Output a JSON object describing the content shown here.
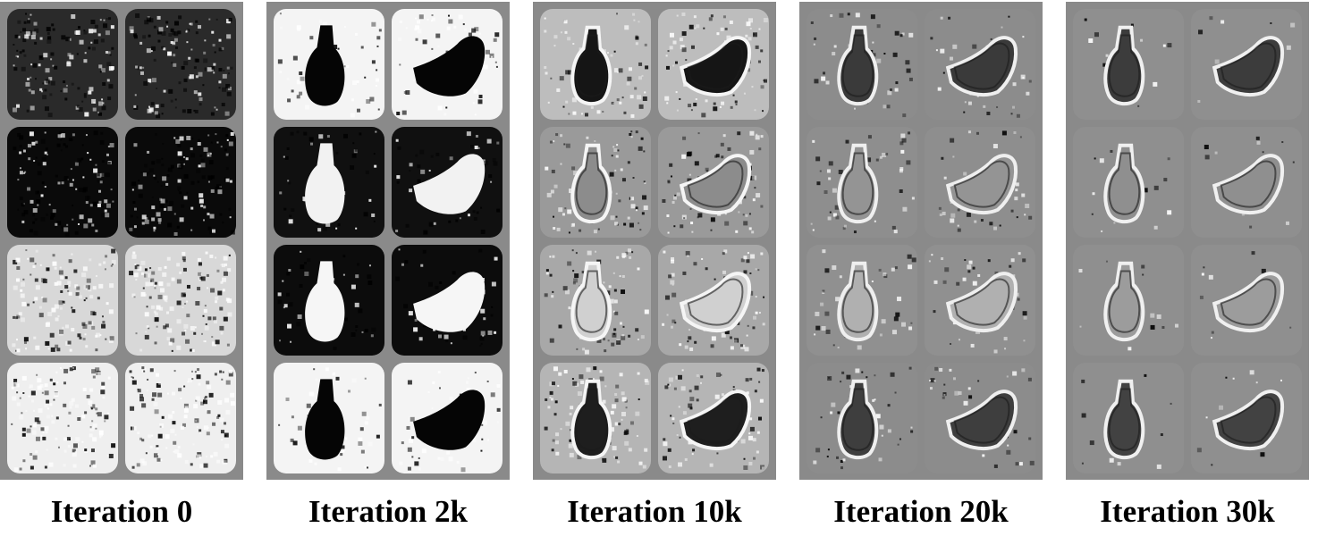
{
  "figure": {
    "panels": [
      {
        "label": "Iteration 0",
        "stage": 0
      },
      {
        "label": "Iteration 2k",
        "stage": 1
      },
      {
        "label": "Iteration 10k",
        "stage": 2
      },
      {
        "label": "Iteration 20k",
        "stage": 3
      },
      {
        "label": "Iteration 30k",
        "stage": 4
      }
    ],
    "colors": {
      "frame_gray": "#8a8a8a",
      "background": "#ffffff",
      "text": "#000000"
    }
  }
}
